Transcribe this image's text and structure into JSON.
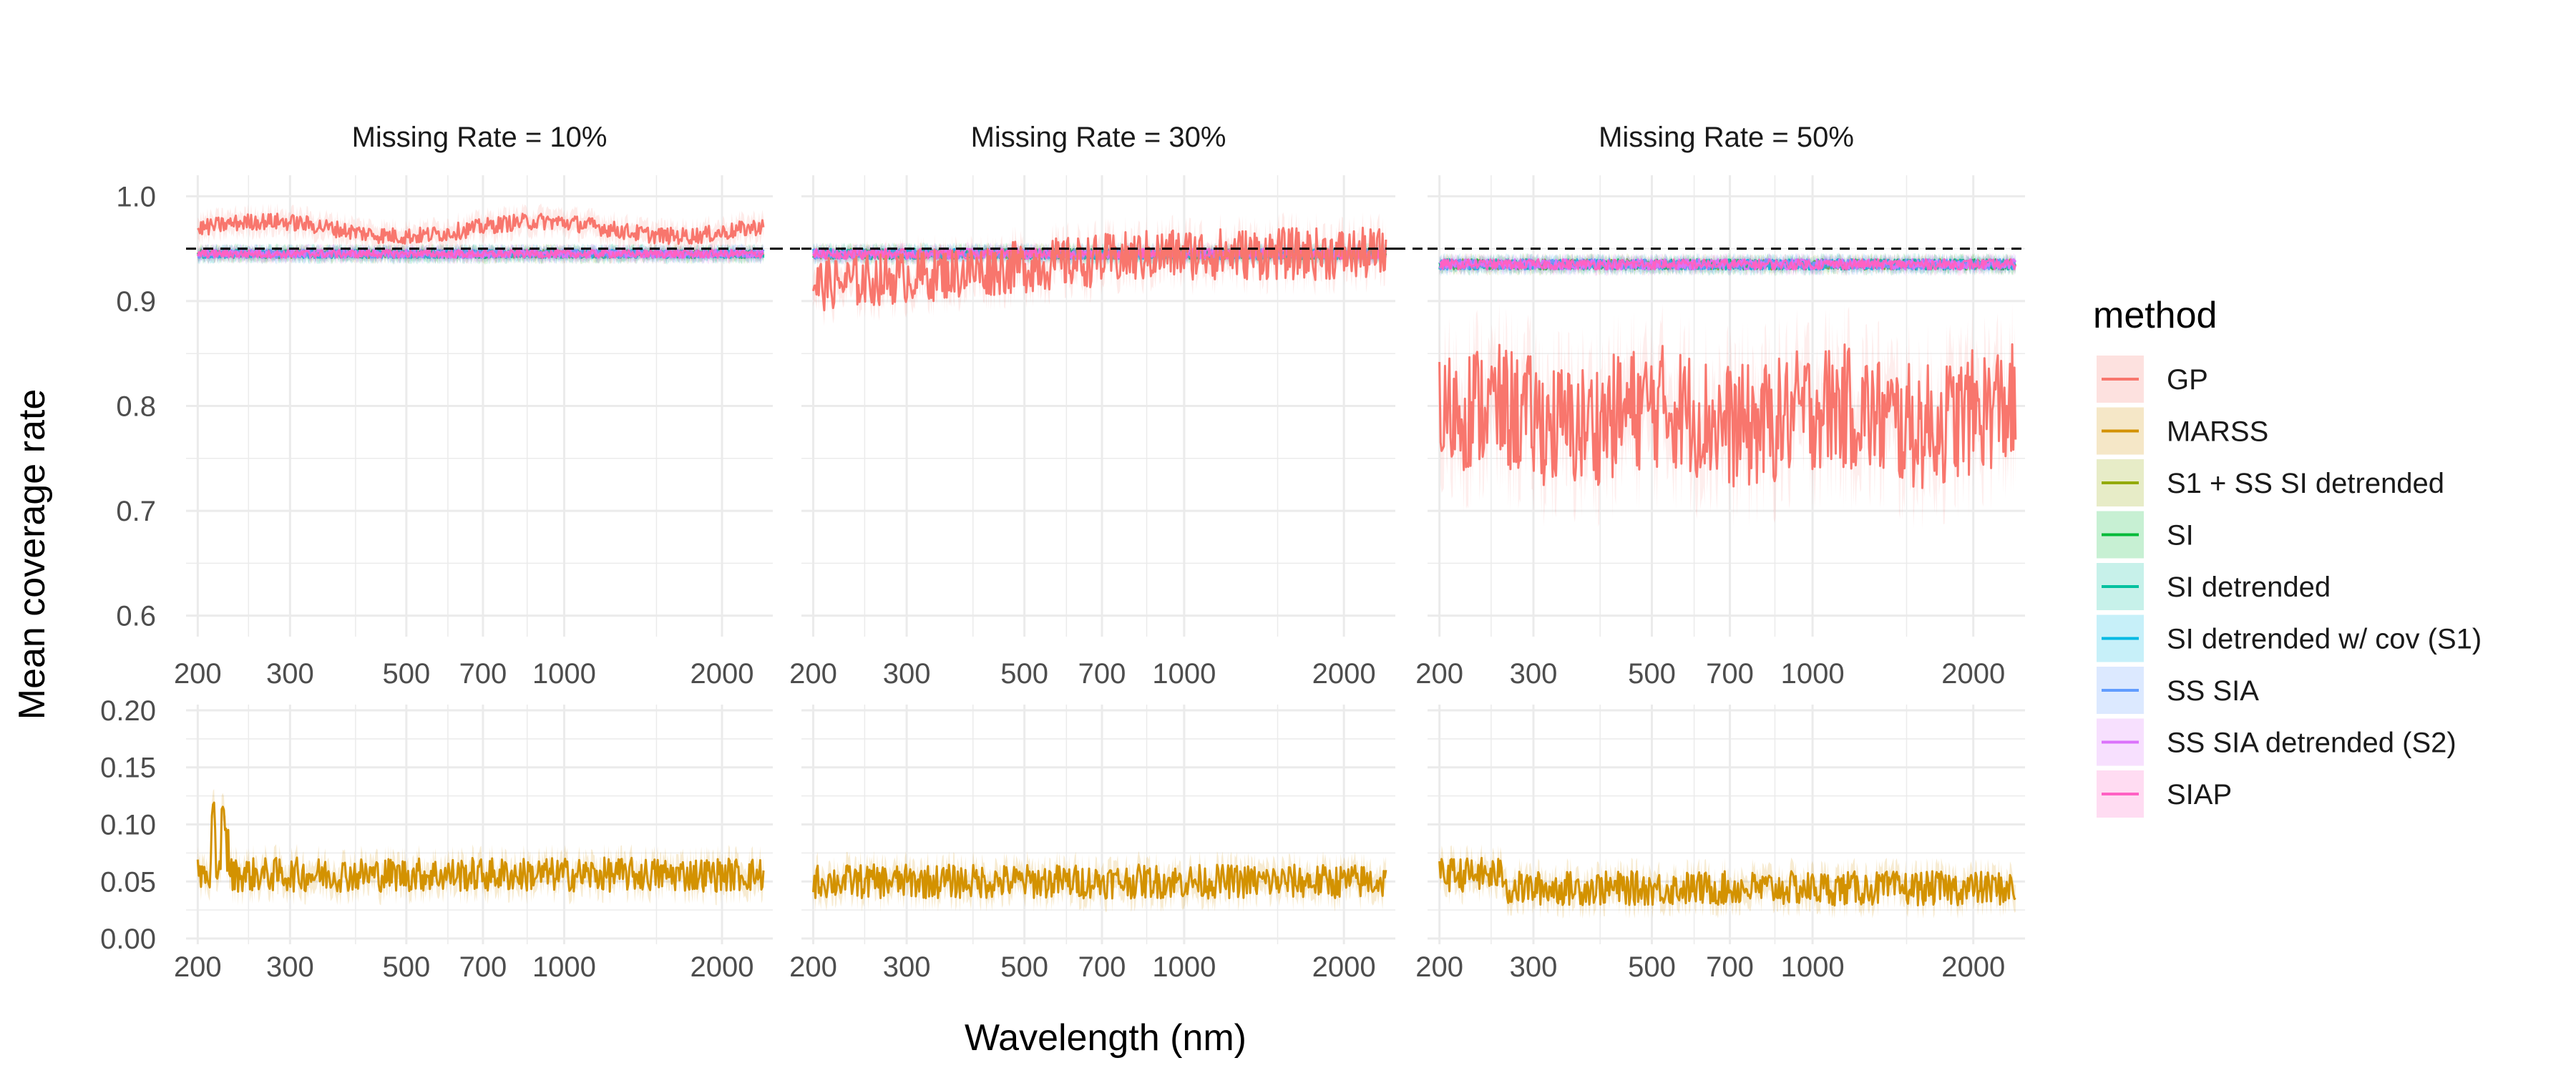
{
  "chart_data": {
    "type": "line",
    "facets": [
      "Missing Rate = 10%",
      "Missing Rate = 30%",
      "Missing Rate = 50%"
    ],
    "xlabel": "Wavelength (nm)",
    "ylabel": "Mean coverage rate",
    "x_scale": "log",
    "x_range": [
      190,
      2500
    ],
    "x_ticks": [
      200,
      300,
      500,
      700,
      1000,
      2000
    ],
    "x_tick_labels": [
      "200",
      "300",
      "500",
      "700",
      "1000",
      "2000"
    ],
    "reference_line": 0.95,
    "upper_panel": {
      "y_range": [
        0.58,
        1.02
      ],
      "y_ticks": [
        0.6,
        0.7,
        0.8,
        0.9,
        1.0
      ],
      "y_tick_labels": [
        "0.6",
        "0.7",
        "0.8",
        "0.9",
        "1.0"
      ]
    },
    "lower_panel": {
      "y_range": [
        -0.005,
        0.205
      ],
      "y_ticks": [
        0.0,
        0.05,
        0.1,
        0.15,
        0.2
      ],
      "y_tick_labels": [
        "0.00",
        "0.05",
        "0.10",
        "0.15",
        "0.20"
      ]
    },
    "legend": {
      "title": "method",
      "position": "right",
      "entries": [
        {
          "name": "GP",
          "color": "#F8766D"
        },
        {
          "name": "MARSS",
          "color": "#D39200"
        },
        {
          "name": "S1 + SS SI detrended",
          "color": "#93AA00"
        },
        {
          "name": "SI",
          "color": "#00BA38"
        },
        {
          "name": "SI detrended",
          "color": "#00C19F"
        },
        {
          "name": "SI detrended w/ cov (S1)",
          "color": "#00B9E3"
        },
        {
          "name": "SS SIA",
          "color": "#619CFF"
        },
        {
          "name": "SS SIA detrended (S2)",
          "color": "#DB72FB"
        },
        {
          "name": "SIAP",
          "color": "#FF61C3"
        }
      ]
    },
    "series_summary": [
      {
        "method": "GP",
        "panel": "Missing Rate = 10%",
        "mean": 0.97,
        "min": 0.955,
        "max": 0.985
      },
      {
        "method": "GP",
        "panel": "Missing Rate = 30%",
        "mean": 0.94,
        "min": 0.88,
        "max": 0.965
      },
      {
        "method": "GP",
        "panel": "Missing Rate = 50%",
        "mean": 0.79,
        "min": 0.7,
        "max": 0.865
      },
      {
        "method": "MARSS",
        "panel": "Missing Rate = 10%",
        "mean": 0.055,
        "min": 0.035,
        "max": 0.13
      },
      {
        "method": "MARSS",
        "panel": "Missing Rate = 30%",
        "mean": 0.05,
        "min": 0.025,
        "max": 0.085
      },
      {
        "method": "MARSS",
        "panel": "Missing Rate = 50%",
        "mean": 0.045,
        "min": 0.015,
        "max": 0.095
      },
      {
        "method": "SI (and other imputation methods)",
        "panel": "Missing Rate = 10%",
        "mean": 0.945,
        "min": 0.935,
        "max": 0.952
      },
      {
        "method": "SI (and other imputation methods)",
        "panel": "Missing Rate = 30%",
        "mean": 0.945,
        "min": 0.93,
        "max": 0.955
      },
      {
        "method": "SI (and other imputation methods)",
        "panel": "Missing Rate = 50%",
        "mean": 0.935,
        "min": 0.925,
        "max": 0.945
      }
    ]
  }
}
